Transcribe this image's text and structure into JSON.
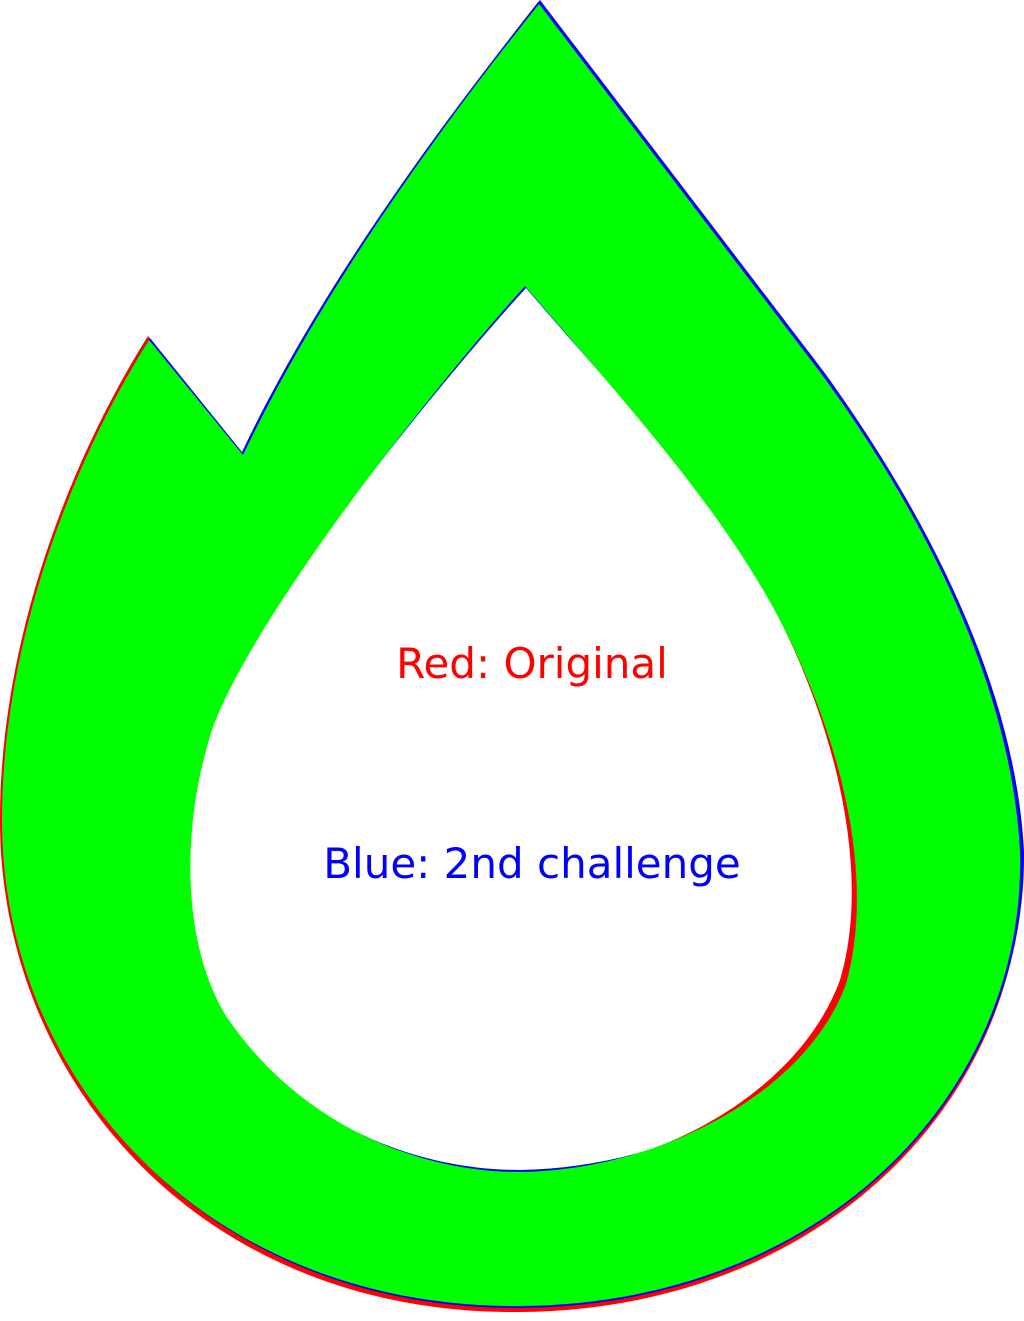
{
  "legend": {
    "original_label": "Red: Original",
    "challenge_label": "Blue: 2nd challenge"
  },
  "colors": {
    "original": "#ff0000",
    "challenge": "#0000ff",
    "overlap": "#00ff00",
    "background": "#ffffff"
  }
}
